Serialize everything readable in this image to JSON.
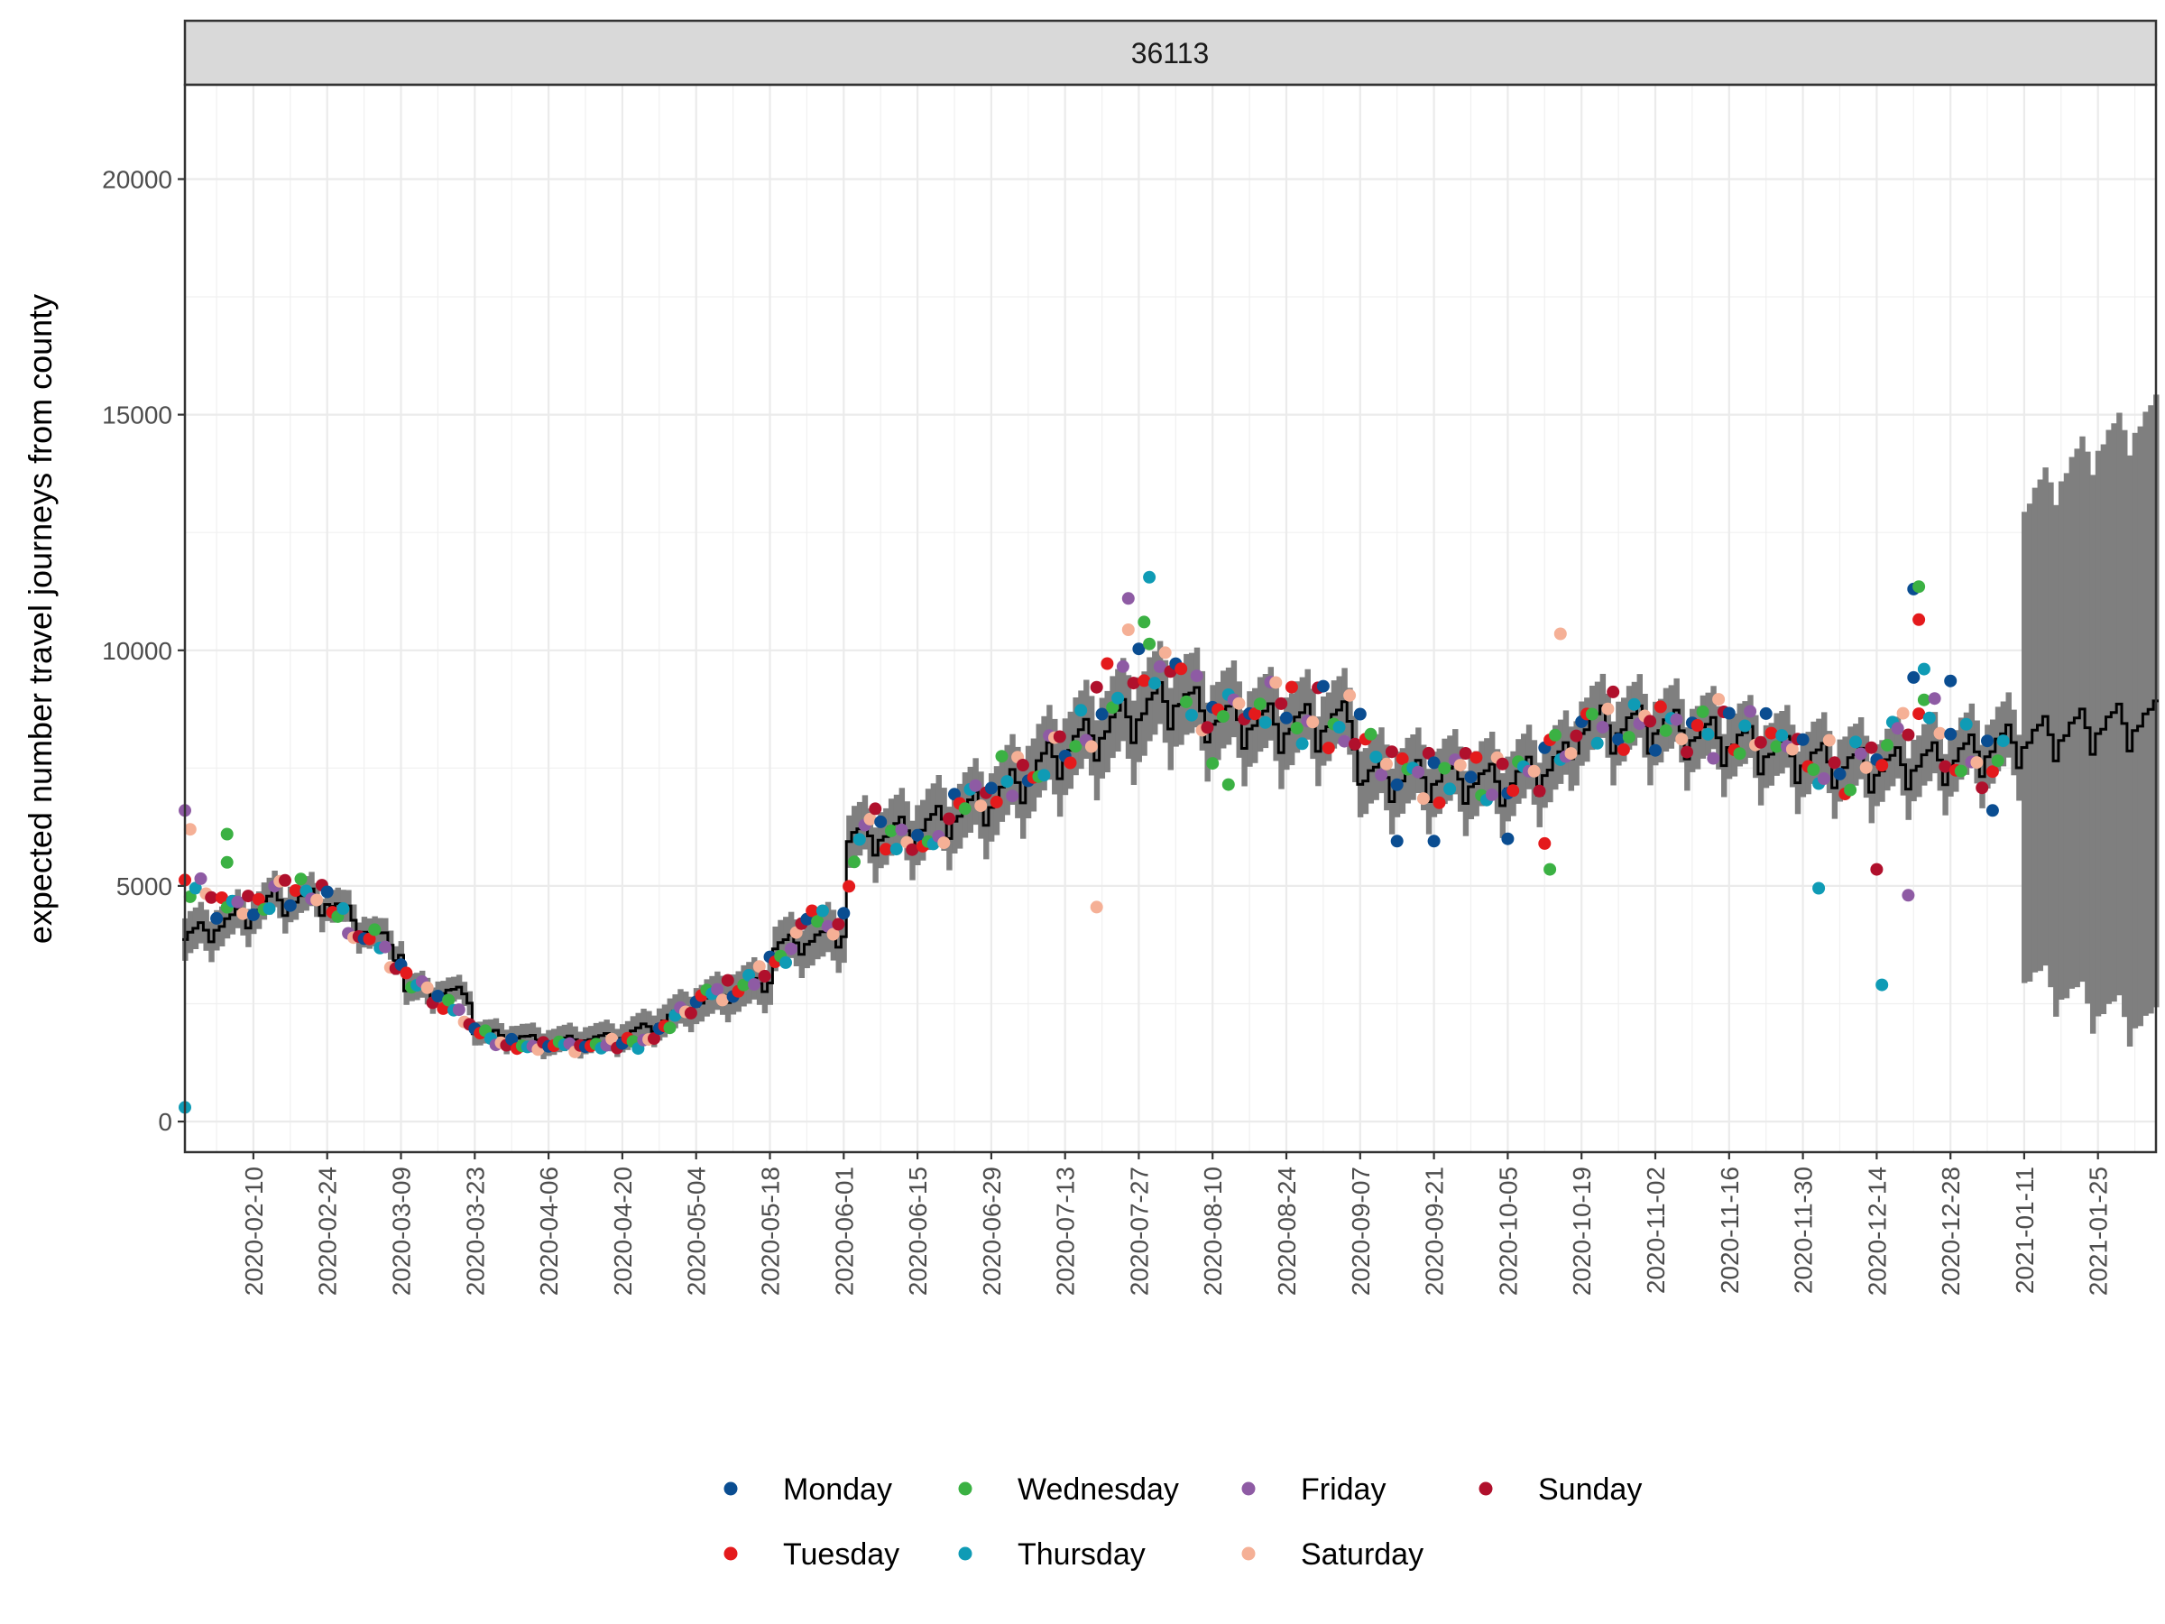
{
  "chart_data": {
    "type": "scatter",
    "facet_label": "36113",
    "ylabel": "expected number travel journeys from county",
    "xlabel": "",
    "x_range": [
      "2020-01-28",
      "2021-02-05"
    ],
    "ylim": [
      -650,
      22000
    ],
    "grid": true,
    "legend_position": "bottom",
    "y_ticks": [
      0,
      5000,
      10000,
      15000,
      20000
    ],
    "x_ticks": [
      "2020-02-10",
      "2020-02-24",
      "2020-03-09",
      "2020-03-23",
      "2020-04-06",
      "2020-04-20",
      "2020-05-04",
      "2020-05-18",
      "2020-06-01",
      "2020-06-15",
      "2020-06-29",
      "2020-07-13",
      "2020-07-27",
      "2020-08-10",
      "2020-08-24",
      "2020-09-07",
      "2020-09-21",
      "2020-10-05",
      "2020-10-19",
      "2020-11-02",
      "2020-11-16",
      "2020-11-30",
      "2020-12-14",
      "2020-12-28",
      "2021-01-11",
      "2021-01-25"
    ],
    "series": [
      {
        "name": "Monday",
        "color": "#0A4D91"
      },
      {
        "name": "Tuesday",
        "color": "#E41A1C"
      },
      {
        "name": "Wednesday",
        "color": "#3BB143"
      },
      {
        "name": "Thursday",
        "color": "#0F9BB5"
      },
      {
        "name": "Friday",
        "color": "#8E5BA4"
      },
      {
        "name": "Saturday",
        "color": "#F5B096"
      },
      {
        "name": "Sunday",
        "color": "#B0102C"
      }
    ],
    "observed_trend": [
      [
        "2020-01-28",
        5000
      ],
      [
        "2020-02-05",
        4400
      ],
      [
        "2020-02-12",
        4700
      ],
      [
        "2020-02-20",
        5000
      ],
      [
        "2020-02-27",
        4300
      ],
      [
        "2020-03-05",
        3700
      ],
      [
        "2020-03-10",
        3000
      ],
      [
        "2020-03-18",
        2500
      ],
      [
        "2020-03-25",
        1800
      ],
      [
        "2020-04-04",
        1600
      ],
      [
        "2020-04-15",
        1600
      ],
      [
        "2020-04-25",
        1700
      ],
      [
        "2020-05-05",
        2600
      ],
      [
        "2020-05-15",
        3000
      ],
      [
        "2020-05-25",
        4100
      ],
      [
        "2020-06-01",
        4400
      ],
      [
        "2020-06-05",
        6300
      ],
      [
        "2020-06-15",
        5900
      ],
      [
        "2020-06-25",
        6700
      ],
      [
        "2020-07-05",
        7700
      ],
      [
        "2020-07-15",
        8000
      ],
      [
        "2020-07-25",
        9700
      ],
      [
        "2020-08-01",
        9600
      ],
      [
        "2020-08-10",
        8800
      ],
      [
        "2020-08-24",
        8700
      ],
      [
        "2020-09-05",
        8500
      ],
      [
        "2020-09-10",
        7400
      ],
      [
        "2020-09-25",
        7300
      ],
      [
        "2020-10-10",
        7200
      ],
      [
        "2020-10-19",
        8700
      ],
      [
        "2020-11-01",
        8400
      ],
      [
        "2020-11-15",
        8300
      ],
      [
        "2020-12-01",
        7800
      ],
      [
        "2020-12-15",
        7300
      ],
      [
        "2020-12-21",
        9000
      ],
      [
        "2020-12-28",
        8000
      ],
      [
        "2021-01-05",
        7500
      ]
    ],
    "model": {
      "start": "2020-01-28",
      "end": "2021-02-05",
      "weekly_pattern": [
        0.98,
        0.99,
        1.02,
        1.03,
        1.05,
        1.0,
        0.93
      ],
      "level": [
        [
          "2020-01-28",
          3900
        ],
        [
          "2020-02-07",
          4300
        ],
        [
          "2020-02-14",
          4700
        ],
        [
          "2020-02-24",
          4700
        ],
        [
          "2020-03-02",
          4100
        ],
        [
          "2020-03-09",
          3600
        ],
        [
          "2020-03-10",
          2800
        ],
        [
          "2020-03-22",
          2700
        ],
        [
          "2020-03-23",
          1900
        ],
        [
          "2020-04-06",
          1700
        ],
        [
          "2020-04-20",
          1800
        ],
        [
          "2020-04-27",
          2100
        ],
        [
          "2020-05-04",
          2500
        ],
        [
          "2020-05-18",
          3000
        ],
        [
          "2020-05-19",
          3700
        ],
        [
          "2020-06-01",
          4000
        ],
        [
          "2020-06-02",
          6000
        ],
        [
          "2020-06-15",
          6200
        ],
        [
          "2020-06-29",
          6800
        ],
        [
          "2020-07-13",
          7900
        ],
        [
          "2020-07-27",
          8700
        ],
        [
          "2020-08-03",
          9000
        ],
        [
          "2020-08-10",
          8600
        ],
        [
          "2020-08-24",
          8400
        ],
        [
          "2020-09-06",
          8500
        ],
        [
          "2020-09-07",
          7300
        ],
        [
          "2020-09-21",
          7300
        ],
        [
          "2020-10-05",
          7200
        ],
        [
          "2020-10-17",
          7700
        ],
        [
          "2020-10-18",
          8400
        ],
        [
          "2020-11-02",
          8400
        ],
        [
          "2020-11-16",
          8100
        ],
        [
          "2020-11-30",
          7700
        ],
        [
          "2020-12-14",
          7500
        ],
        [
          "2020-12-28",
          7700
        ],
        [
          "2021-01-11",
          8100
        ],
        [
          "2021-01-25",
          8400
        ],
        [
          "2021-02-05",
          8500
        ]
      ],
      "band_width": [
        [
          "2020-01-28",
          450
        ],
        [
          "2020-03-23",
          250
        ],
        [
          "2020-04-20",
          300
        ],
        [
          "2020-06-01",
          550
        ],
        [
          "2020-07-27",
          900
        ],
        [
          "2020-09-07",
          700
        ],
        [
          "2020-12-28",
          650
        ],
        [
          "2021-01-10",
          700
        ],
        [
          "2021-01-11",
          5000
        ],
        [
          "2021-01-25",
          6000
        ],
        [
          "2021-02-05",
          6500
        ]
      ],
      "outliers": [
        [
          "2020-01-28",
          300,
          "Thursday"
        ],
        [
          "2020-01-28",
          6600,
          "Friday"
        ],
        [
          "2020-01-29",
          6200,
          "Saturday"
        ],
        [
          "2020-02-05",
          6100,
          "Wednesday"
        ],
        [
          "2020-02-05",
          5500,
          "Wednesday"
        ],
        [
          "2020-07-25",
          11100,
          "Friday"
        ],
        [
          "2020-07-29",
          11550,
          "Thursday"
        ],
        [
          "2020-07-28",
          10600,
          "Wednesday"
        ],
        [
          "2020-07-19",
          4550,
          "Saturday"
        ],
        [
          "2020-08-10",
          7600,
          "Wednesday"
        ],
        [
          "2020-08-13",
          7150,
          "Wednesday"
        ],
        [
          "2020-09-14",
          5950,
          "Monday"
        ],
        [
          "2020-09-21",
          5950,
          "Monday"
        ],
        [
          "2020-10-05",
          6000,
          "Monday"
        ],
        [
          "2020-10-12",
          5900,
          "Tuesday"
        ],
        [
          "2020-10-13",
          5350,
          "Wednesday"
        ],
        [
          "2020-10-15",
          10350,
          "Saturday"
        ],
        [
          "2020-12-03",
          4950,
          "Thursday"
        ],
        [
          "2020-12-14",
          5350,
          "Sunday"
        ],
        [
          "2020-12-15",
          2900,
          "Thursday"
        ],
        [
          "2020-12-20",
          4800,
          "Friday"
        ],
        [
          "2020-12-21",
          11300,
          "Monday"
        ],
        [
          "2020-12-22",
          10650,
          "Tuesday"
        ],
        [
          "2020-12-22",
          11350,
          "Wednesday"
        ],
        [
          "2020-12-23",
          9600,
          "Thursday"
        ],
        [
          "2020-12-28",
          9350,
          "Monday"
        ],
        [
          "2021-01-05",
          6600,
          "Monday"
        ]
      ]
    }
  }
}
